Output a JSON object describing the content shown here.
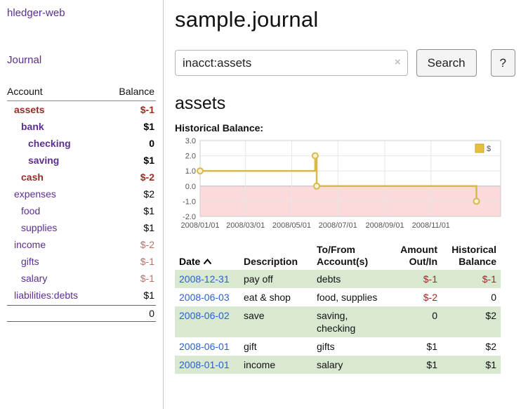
{
  "colors": {
    "link_purple": "#5b2f91",
    "date_blue": "#2a5fcc",
    "negative_strong": "#9c2a24",
    "negative_soft": "#b5736c",
    "row_green": "#d9e8d0",
    "chart_line": "#d8b94c",
    "chart_marker_fill": "#fdf3d1",
    "chart_negative_region": "#fadada",
    "chart_legend_fill": "#e6bf42",
    "chart_legend_stroke": "#c9a52f"
  },
  "sidebar": {
    "brand": "hledger-web",
    "journal_link": "Journal",
    "columns": {
      "account": "Account",
      "balance": "Balance"
    },
    "accounts": [
      {
        "name": "assets",
        "balance": "$-1",
        "indent": 0,
        "bold": true,
        "negative": true,
        "balance_negative": true
      },
      {
        "name": "bank",
        "balance": "$1",
        "indent": 1,
        "bold": true,
        "negative": false,
        "balance_negative": false
      },
      {
        "name": "checking",
        "balance": "0",
        "indent": 2,
        "bold": true,
        "negative": false,
        "balance_negative": false
      },
      {
        "name": "saving",
        "balance": "$1",
        "indent": 2,
        "bold": true,
        "negative": false,
        "balance_negative": false
      },
      {
        "name": "cash",
        "balance": "$-2",
        "indent": 1,
        "bold": true,
        "negative": true,
        "balance_negative": true
      },
      {
        "name": "expenses",
        "balance": "$2",
        "indent": 0,
        "bold": false,
        "negative": false,
        "balance_negative": false
      },
      {
        "name": "food",
        "balance": "$1",
        "indent": 1,
        "bold": false,
        "negative": false,
        "balance_negative": false
      },
      {
        "name": "supplies",
        "balance": "$1",
        "indent": 1,
        "bold": false,
        "negative": false,
        "balance_negative": false
      },
      {
        "name": "income",
        "balance": "$-2",
        "indent": 0,
        "bold": false,
        "negative": false,
        "balance_negative": true
      },
      {
        "name": "gifts",
        "balance": "$-1",
        "indent": 1,
        "bold": false,
        "negative": false,
        "balance_negative": true
      },
      {
        "name": "salary",
        "balance": "$-1",
        "indent": 1,
        "bold": false,
        "negative": false,
        "balance_negative": true
      },
      {
        "name": "liabilities:debts",
        "balance": "$1",
        "indent": 0,
        "bold": false,
        "negative": false,
        "balance_negative": false
      }
    ],
    "total": "0"
  },
  "main": {
    "title": "sample.journal",
    "search": {
      "value": "inacct:assets",
      "clear_icon": "×",
      "search_button": "Search",
      "help_button": "?"
    },
    "account_heading": "assets",
    "chart_title": "Historical Balance:"
  },
  "chart_data": {
    "type": "line",
    "step": true,
    "title": "Historical Balance",
    "legend_position": "top-right",
    "grid": true,
    "ylim": [
      -2,
      3
    ],
    "yticks": [
      3.0,
      2.0,
      1.0,
      0.0,
      -1.0,
      -2.0
    ],
    "xrange": [
      "2008-01-01",
      "2009-02-01"
    ],
    "xticks": [
      {
        "date": "2008-01-01",
        "label": "2008/01/01"
      },
      {
        "date": "2008-03-01",
        "label": "2008/03/01"
      },
      {
        "date": "2008-05-01",
        "label": "2008/05/01"
      },
      {
        "date": "2008-07-01",
        "label": "2008/07/01"
      },
      {
        "date": "2008-09-01",
        "label": "2008/09/01"
      },
      {
        "date": "2008-11-01",
        "label": "2008/11/01"
      }
    ],
    "series": [
      {
        "name": "$",
        "points": [
          [
            "2008-01-01",
            1
          ],
          [
            "2008-06-01",
            2
          ],
          [
            "2008-06-03",
            0
          ],
          [
            "2008-12-31",
            -1
          ]
        ]
      }
    ]
  },
  "register": {
    "headers": {
      "date": "Date",
      "description": "Description",
      "accounts": "To/From Account(s)",
      "amount": "Amount Out/In",
      "balance": "Historical Balance"
    },
    "rows": [
      {
        "date": "2008-12-31",
        "description": "pay off",
        "accounts": "debts",
        "amount": "$-1",
        "amount_neg": true,
        "balance": "$-1",
        "balance_neg": true,
        "shaded": true
      },
      {
        "date": "2008-06-03",
        "description": "eat & shop",
        "accounts": "food, supplies",
        "amount": "$-2",
        "amount_neg": true,
        "balance": "0",
        "balance_neg": false,
        "shaded": false
      },
      {
        "date": "2008-06-02",
        "description": "save",
        "accounts": "saving, checking",
        "amount": "0",
        "amount_neg": false,
        "balance": "$2",
        "balance_neg": false,
        "shaded": true
      },
      {
        "date": "2008-06-01",
        "description": "gift",
        "accounts": "gifts",
        "amount": "$1",
        "amount_neg": false,
        "balance": "$2",
        "balance_neg": false,
        "shaded": false
      },
      {
        "date": "2008-01-01",
        "description": "income",
        "accounts": "salary",
        "amount": "$1",
        "amount_neg": false,
        "balance": "$1",
        "balance_neg": false,
        "shaded": true
      }
    ]
  }
}
